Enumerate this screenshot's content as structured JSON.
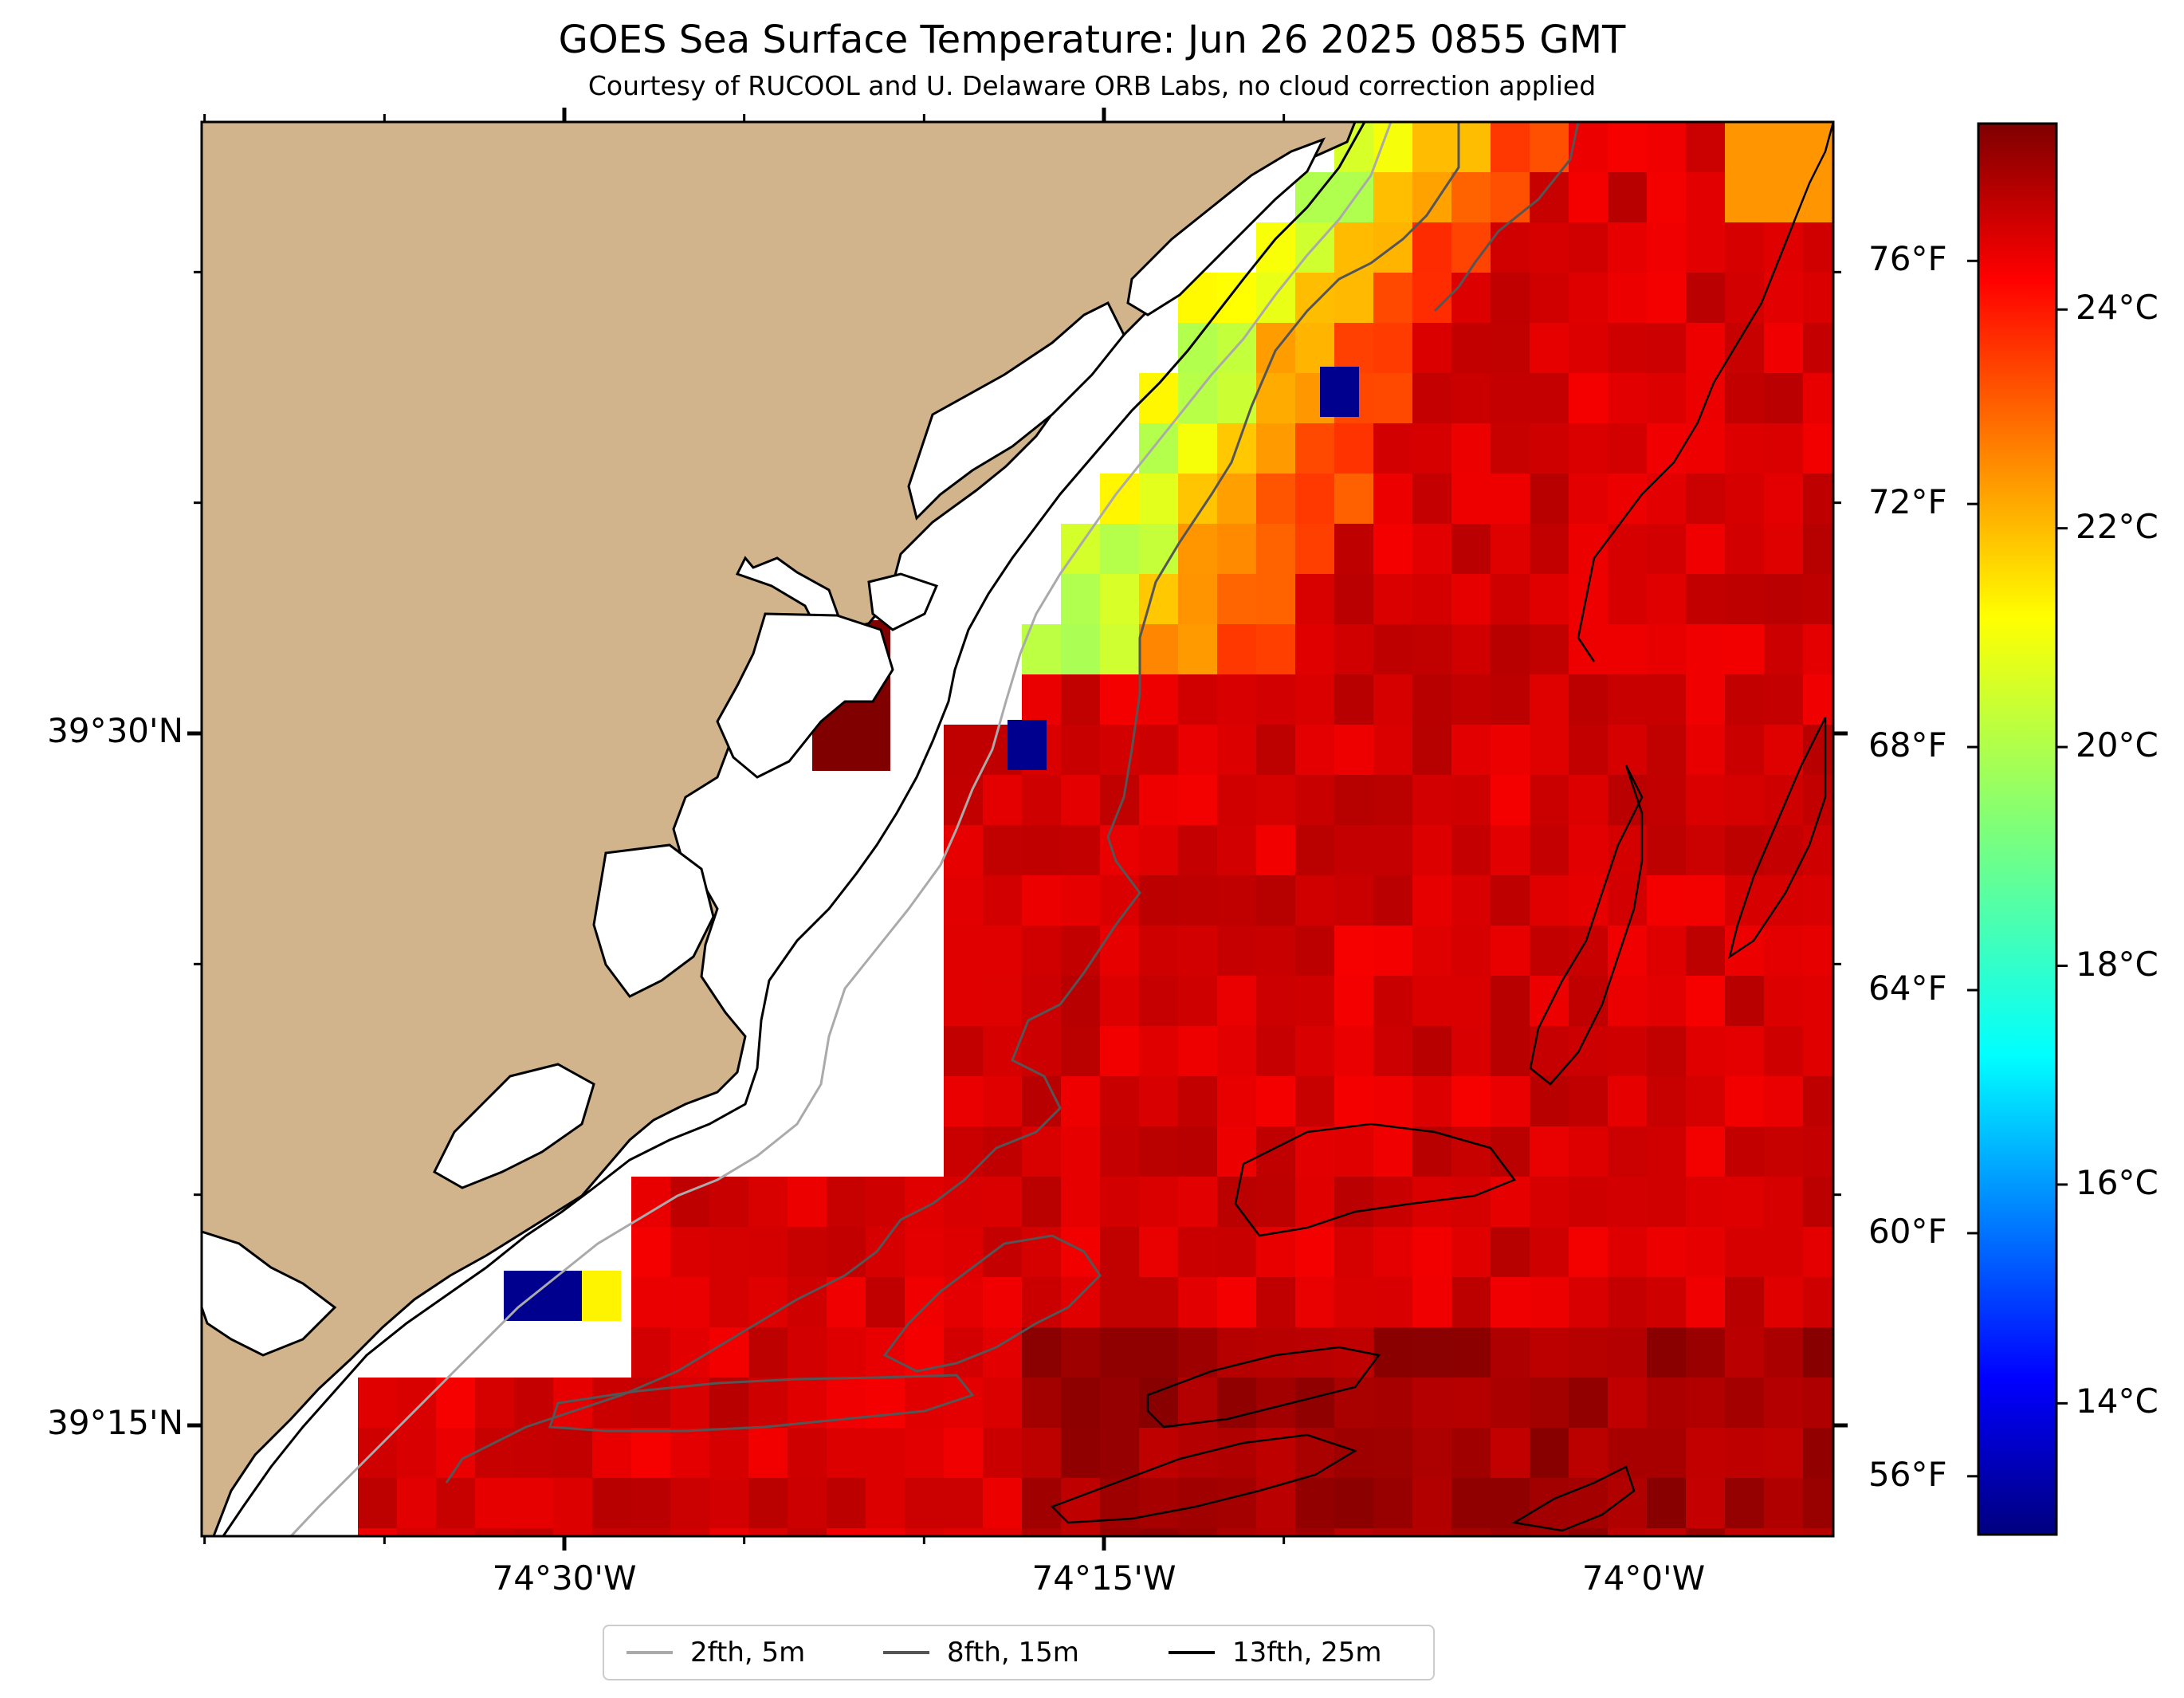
{
  "title": "GOES Sea Surface Temperature: Jun 26 2025 0855 GMT",
  "subtitle": "Courtesy of RUCOOL and U. Delaware ORB Labs, no cloud correction applied",
  "map": {
    "lat_ticks": [
      {
        "label": "39°30'N",
        "value": 39.5
      },
      {
        "label": "39°15'N",
        "value": 39.25
      }
    ],
    "lon_ticks": [
      {
        "label": "74°30'W",
        "value": -74.5
      },
      {
        "label": "74°15'W",
        "value": -74.25
      },
      {
        "label": "74°0'W",
        "value": -74.0
      }
    ],
    "colors": {
      "land": "#d2b48c",
      "no_data": "#ffffff",
      "coast": "#000000",
      "iso_2fth": "#aaaaaa",
      "iso_8fth": "#555555",
      "iso_13fth": "#000000"
    }
  },
  "colorbar": {
    "colormap": "jet",
    "range_c": [
      12.8,
      25.7
    ],
    "celsius_labels": [
      {
        "label": "24°C",
        "value": 24
      },
      {
        "label": "22°C",
        "value": 22
      },
      {
        "label": "20°C",
        "value": 20
      },
      {
        "label": "18°C",
        "value": 18
      },
      {
        "label": "16°C",
        "value": 16
      },
      {
        "label": "14°C",
        "value": 14
      }
    ],
    "fahrenheit_labels": [
      {
        "label": "76°F",
        "value": 76
      },
      {
        "label": "72°F",
        "value": 72
      },
      {
        "label": "68°F",
        "value": 68
      },
      {
        "label": "64°F",
        "value": 64
      },
      {
        "label": "60°F",
        "value": 60
      },
      {
        "label": "56°F",
        "value": 56
      }
    ]
  },
  "legend": {
    "items": [
      {
        "label": "2fth, 5m",
        "color": "#aaaaaa"
      },
      {
        "label": "8fth, 15m",
        "color": "#555555"
      },
      {
        "label": "13fth, 25m",
        "color": "#000000"
      }
    ]
  }
}
